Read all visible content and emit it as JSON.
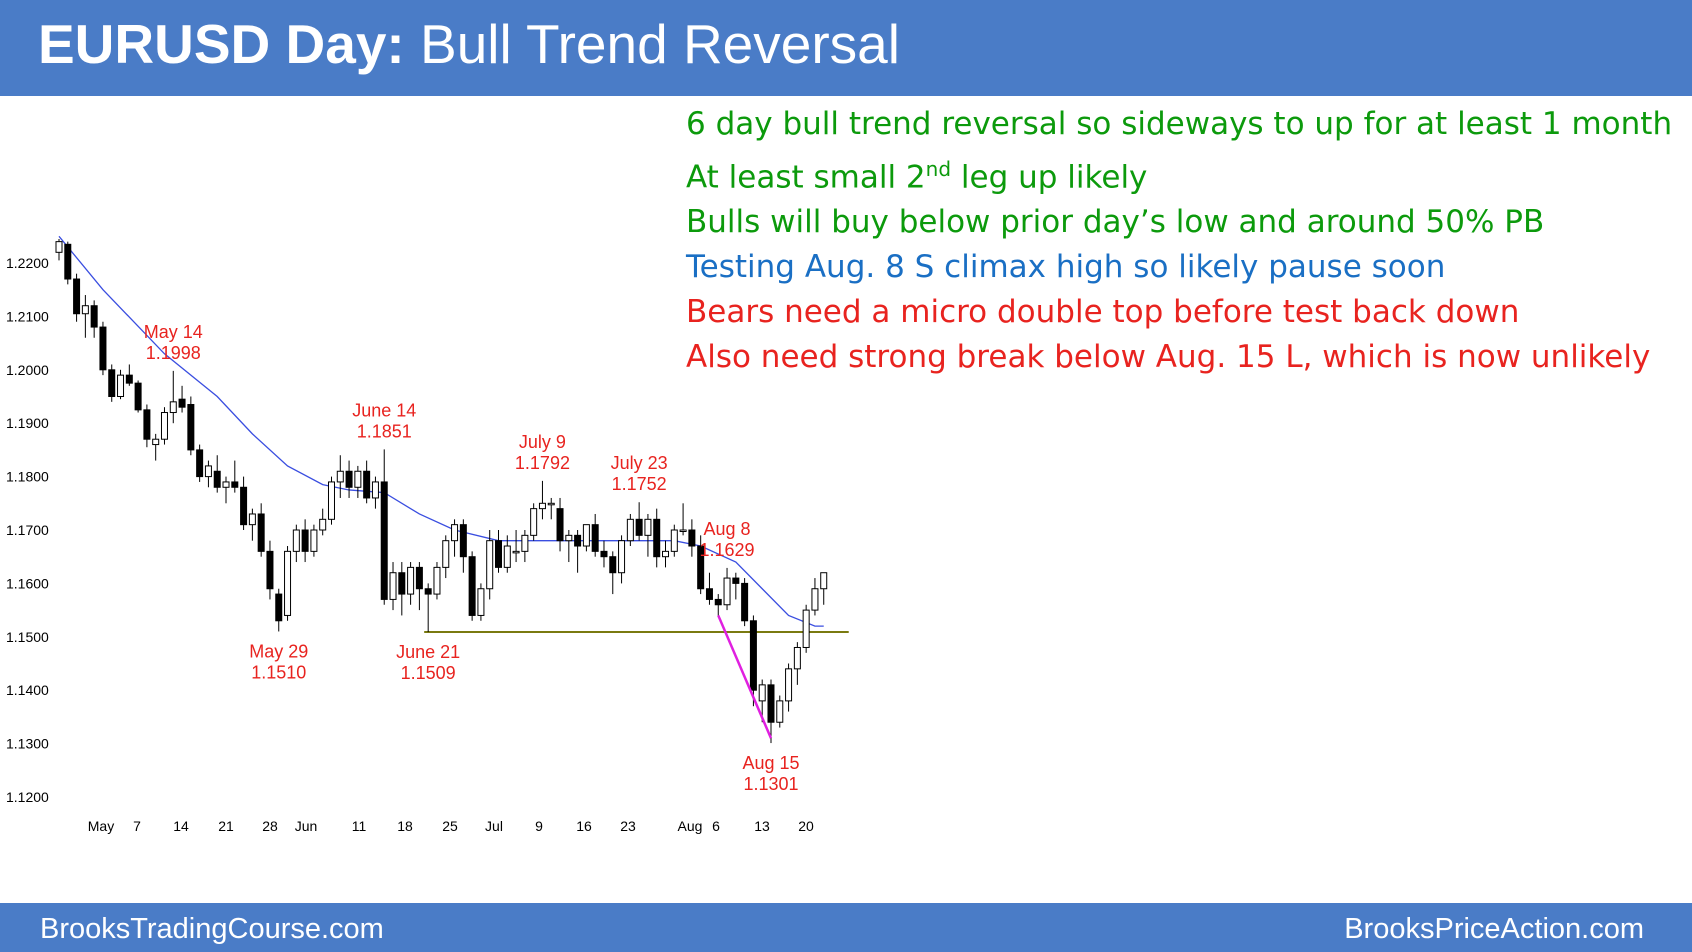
{
  "title": {
    "bold": "EURUSD Day:",
    "rest": " Bull Trend Reversal"
  },
  "notes": [
    {
      "text": "6 day bull trend reversal so sideways to up for at least 1 month",
      "color": "#0c9a0c"
    },
    {
      "text_before": "At least small 2",
      "sup": "nd",
      "text_after": " leg up likely",
      "color": "#0c9a0c"
    },
    {
      "text": "Bulls will buy below prior day’s low and around 50% PB",
      "color": "#0c9a0c"
    },
    {
      "text": "Testing Aug. 8 S climax high so likely pause soon",
      "color": "#1a6fc4"
    },
    {
      "text": "Bears need a micro double top before test back down",
      "color": "#e8231f"
    },
    {
      "text": "Also need strong break below Aug. 15 L, which is now unlikely",
      "color": "#e8231f"
    }
  ],
  "footer": {
    "left": "BrooksTradingCourse.com",
    "right": "BrooksPriceAction.com"
  },
  "colors": {
    "header": "#4a7cc7",
    "annotation": "#e8231f",
    "support_line": "#7a7a10",
    "wedge_line": "#e020e0",
    "moving_average": "#3a4ee0",
    "bull_candle": "#ffffff",
    "bear_candle": "#000000"
  },
  "chart_data": {
    "type": "candlestick",
    "instrument": "EURUSD",
    "timeframe": "Day",
    "ylim": [
      1.12,
      1.23
    ],
    "y_ticks": [
      "1.1200",
      "1.1300",
      "1.1400",
      "1.1500",
      "1.1600",
      "1.1700",
      "1.1800",
      "1.1900",
      "1.2000",
      "1.2100",
      "1.2200"
    ],
    "x_ticks": [
      "May",
      "7",
      "14",
      "21",
      "28",
      "Jun",
      "11",
      "18",
      "25",
      "Jul",
      "9",
      "16",
      "23",
      "Aug",
      "6",
      "13",
      "20"
    ],
    "candles": [
      [
        1.222,
        1.2245,
        1.2205,
        1.224
      ],
      [
        1.2235,
        1.224,
        1.216,
        1.217
      ],
      [
        1.217,
        1.218,
        1.209,
        1.2105
      ],
      [
        1.2105,
        1.214,
        1.206,
        1.212
      ],
      [
        1.212,
        1.213,
        1.206,
        1.208
      ],
      [
        1.208,
        1.209,
        1.199,
        1.2
      ],
      [
        1.2,
        1.201,
        1.194,
        1.195
      ],
      [
        1.195,
        1.2,
        1.1945,
        1.199
      ],
      [
        1.199,
        1.201,
        1.197,
        1.1975
      ],
      [
        1.1975,
        1.198,
        1.192,
        1.1925
      ],
      [
        1.1925,
        1.1935,
        1.1855,
        1.187
      ],
      [
        1.186,
        1.188,
        1.183,
        1.187
      ],
      [
        1.187,
        1.193,
        1.186,
        1.192
      ],
      [
        1.192,
        1.1998,
        1.19,
        1.194
      ],
      [
        1.1945,
        1.197,
        1.192,
        1.193
      ],
      [
        1.1935,
        1.195,
        1.184,
        1.185
      ],
      [
        1.185,
        1.186,
        1.179,
        1.18
      ],
      [
        1.18,
        1.183,
        1.178,
        1.182
      ],
      [
        1.181,
        1.184,
        1.177,
        1.178
      ],
      [
        1.178,
        1.18,
        1.175,
        1.179
      ],
      [
        1.179,
        1.183,
        1.177,
        1.178
      ],
      [
        1.178,
        1.18,
        1.17,
        1.171
      ],
      [
        1.171,
        1.174,
        1.168,
        1.173
      ],
      [
        1.173,
        1.175,
        1.165,
        1.166
      ],
      [
        1.166,
        1.168,
        1.157,
        1.159
      ],
      [
        1.158,
        1.159,
        1.151,
        1.153
      ],
      [
        1.154,
        1.167,
        1.153,
        1.166
      ],
      [
        1.166,
        1.171,
        1.164,
        1.17
      ],
      [
        1.17,
        1.172,
        1.164,
        1.166
      ],
      [
        1.166,
        1.171,
        1.165,
        1.17
      ],
      [
        1.17,
        1.174,
        1.169,
        1.172
      ],
      [
        1.172,
        1.18,
        1.171,
        1.179
      ],
      [
        1.179,
        1.184,
        1.176,
        1.181
      ],
      [
        1.181,
        1.183,
        1.176,
        1.178
      ],
      [
        1.178,
        1.182,
        1.176,
        1.181
      ],
      [
        1.181,
        1.183,
        1.175,
        1.176
      ],
      [
        1.176,
        1.18,
        1.174,
        1.179
      ],
      [
        1.179,
        1.1851,
        1.156,
        1.157
      ],
      [
        1.157,
        1.164,
        1.155,
        1.162
      ],
      [
        1.162,
        1.164,
        1.154,
        1.158
      ],
      [
        1.158,
        1.164,
        1.156,
        1.163
      ],
      [
        1.163,
        1.164,
        1.155,
        1.159
      ],
      [
        1.159,
        1.16,
        1.1509,
        1.158
      ],
      [
        1.158,
        1.164,
        1.157,
        1.163
      ],
      [
        1.163,
        1.169,
        1.161,
        1.168
      ],
      [
        1.168,
        1.172,
        1.165,
        1.171
      ],
      [
        1.171,
        1.172,
        1.162,
        1.165
      ],
      [
        1.165,
        1.166,
        1.153,
        1.154
      ],
      [
        1.154,
        1.16,
        1.153,
        1.159
      ],
      [
        1.159,
        1.17,
        1.157,
        1.168
      ],
      [
        1.168,
        1.17,
        1.162,
        1.163
      ],
      [
        1.163,
        1.169,
        1.162,
        1.167
      ],
      [
        1.166,
        1.17,
        1.164,
        1.166
      ],
      [
        1.166,
        1.17,
        1.164,
        1.169
      ],
      [
        1.169,
        1.175,
        1.168,
        1.174
      ],
      [
        1.174,
        1.1792,
        1.172,
        1.175
      ],
      [
        1.175,
        1.176,
        1.172,
        1.175
      ],
      [
        1.174,
        1.176,
        1.166,
        1.168
      ],
      [
        1.168,
        1.17,
        1.164,
        1.169
      ],
      [
        1.169,
        1.17,
        1.162,
        1.167
      ],
      [
        1.167,
        1.171,
        1.166,
        1.171
      ],
      [
        1.171,
        1.173,
        1.165,
        1.166
      ],
      [
        1.166,
        1.168,
        1.163,
        1.165
      ],
      [
        1.165,
        1.166,
        1.158,
        1.162
      ],
      [
        1.162,
        1.169,
        1.16,
        1.168
      ],
      [
        1.168,
        1.173,
        1.167,
        1.172
      ],
      [
        1.172,
        1.1752,
        1.168,
        1.169
      ],
      [
        1.169,
        1.173,
        1.165,
        1.172
      ],
      [
        1.172,
        1.174,
        1.163,
        1.165
      ],
      [
        1.165,
        1.168,
        1.163,
        1.166
      ],
      [
        1.166,
        1.171,
        1.165,
        1.17
      ],
      [
        1.17,
        1.175,
        1.169,
        1.17
      ],
      [
        1.17,
        1.172,
        1.165,
        1.167
      ],
      [
        1.167,
        1.169,
        1.158,
        1.159
      ],
      [
        1.159,
        1.162,
        1.156,
        1.157
      ],
      [
        1.157,
        1.158,
        1.154,
        1.156
      ],
      [
        1.156,
        1.1629,
        1.155,
        1.161
      ],
      [
        1.161,
        1.162,
        1.157,
        1.16
      ],
      [
        1.16,
        1.161,
        1.152,
        1.153
      ],
      [
        1.153,
        1.154,
        1.137,
        1.14
      ],
      [
        1.138,
        1.142,
        1.134,
        1.141
      ],
      [
        1.141,
        1.142,
        1.1301,
        1.134
      ],
      [
        1.134,
        1.139,
        1.133,
        1.138
      ],
      [
        1.138,
        1.145,
        1.136,
        1.144
      ],
      [
        1.144,
        1.149,
        1.141,
        1.148
      ],
      [
        1.148,
        1.156,
        1.147,
        1.155
      ],
      [
        1.155,
        1.161,
        1.154,
        1.159
      ],
      [
        1.159,
        1.162,
        1.156,
        1.162
      ]
    ],
    "moving_average": [
      [
        0,
        1.225
      ],
      [
        5,
        1.215
      ],
      [
        12,
        1.203
      ],
      [
        18,
        1.195
      ],
      [
        22,
        1.188
      ],
      [
        26,
        1.182
      ],
      [
        30,
        1.1785
      ],
      [
        33,
        1.1775
      ],
      [
        37,
        1.177
      ],
      [
        41,
        1.173
      ],
      [
        45,
        1.17
      ],
      [
        50,
        1.168
      ],
      [
        55,
        1.168
      ],
      [
        60,
        1.168
      ],
      [
        66,
        1.168
      ],
      [
        70,
        1.168
      ],
      [
        73,
        1.167
      ],
      [
        77,
        1.164
      ],
      [
        80,
        1.159
      ],
      [
        83,
        1.154
      ],
      [
        86,
        1.152
      ],
      [
        87,
        1.152
      ]
    ],
    "horizontal_line": {
      "value": 1.1509,
      "from": 42,
      "to": 87
    },
    "wedge_line": [
      [
        75,
        1.154
      ],
      [
        81,
        1.131
      ]
    ],
    "annotations": [
      {
        "label": "May 14",
        "value": "1.1998",
        "index": 13,
        "position": "above"
      },
      {
        "label": "May 29",
        "value": "1.1510",
        "index": 25,
        "position": "below"
      },
      {
        "label": "June 14",
        "value": "1.1851",
        "index": 37,
        "position": "above"
      },
      {
        "label": "June 21",
        "value": "1.1509",
        "index": 42,
        "position": "below"
      },
      {
        "label": "July 9",
        "value": "1.1792",
        "index": 55,
        "position": "above"
      },
      {
        "label": "July 23",
        "value": "1.1752",
        "index": 66,
        "position": "above"
      },
      {
        "label": "Aug 8",
        "value": "1.1629",
        "index": 76,
        "position": "above"
      },
      {
        "label": "Aug 15",
        "value": "1.1301",
        "index": 81,
        "position": "below"
      }
    ]
  }
}
